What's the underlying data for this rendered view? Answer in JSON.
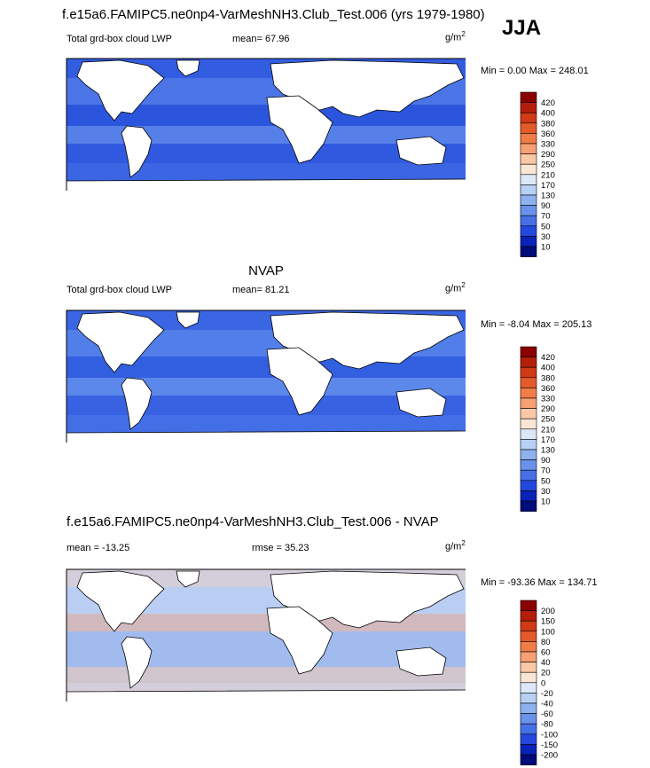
{
  "header": {
    "main_title": "f.e15a6.FAMIPC5.ne0np4-VarMeshNH3.Club_Test.006 (yrs 1979-1980)",
    "season": "JJA"
  },
  "chart_data": [
    {
      "type": "heatmap",
      "panel_title": "",
      "left_label": "Total grd-box cloud LWP",
      "stat_label": "mean=  67.96",
      "units": "g/m",
      "units_sup": "2",
      "minmax": "Min =   0.00 Max = 248.01",
      "min": 0.0,
      "max": 248.01,
      "mean": 67.96,
      "colorbar_labels": [
        "420",
        "400",
        "380",
        "360",
        "330",
        "290",
        "250",
        "210",
        "170",
        "130",
        "90",
        "70",
        "50",
        "30",
        "10"
      ],
      "colorbar_colors": [
        "#8b0000",
        "#b41e0a",
        "#d03a14",
        "#e45a28",
        "#f07c48",
        "#f6a074",
        "#fac8a6",
        "#fbe6d4",
        "#dce8f8",
        "#b8d0f4",
        "#8fb2ef",
        "#6a92eb",
        "#4670e6",
        "#2448dd",
        "#0a22b8",
        "#000c78"
      ],
      "ocean_color": "#3a64e2"
    },
    {
      "type": "heatmap",
      "panel_title": "NVAP",
      "left_label": "Total grd-box cloud LWP",
      "stat_label": "mean=  81.21",
      "units": "g/m",
      "units_sup": "2",
      "minmax": "Min =  -8.04 Max = 205.13",
      "min": -8.04,
      "max": 205.13,
      "mean": 81.21,
      "colorbar_labels": [
        "420",
        "400",
        "380",
        "360",
        "330",
        "290",
        "250",
        "210",
        "170",
        "130",
        "90",
        "70",
        "50",
        "30",
        "10"
      ],
      "colorbar_colors": [
        "#8b0000",
        "#b41e0a",
        "#d03a14",
        "#e45a28",
        "#f07c48",
        "#f6a074",
        "#fac8a6",
        "#fbe6d4",
        "#dce8f8",
        "#b8d0f4",
        "#8fb2ef",
        "#6a92eb",
        "#4670e6",
        "#2448dd",
        "#0a22b8",
        "#000c78"
      ],
      "ocean_color": "#4a78e8"
    },
    {
      "type": "heatmap",
      "panel_title": "f.e15a6.FAMIPC5.ne0np4-VarMeshNH3.Club_Test.006 - NVAP",
      "left_label": "mean = -13.25",
      "stat_label": "rmse =  35.23",
      "units": "g/m",
      "units_sup": "2",
      "minmax": "Min = -93.36 Max = 134.71",
      "min": -93.36,
      "max": 134.71,
      "mean": -13.25,
      "rmse": 35.23,
      "colorbar_labels": [
        "200",
        "150",
        "100",
        "80",
        "60",
        "40",
        "20",
        "0",
        "-20",
        "-40",
        "-60",
        "-80",
        "-100",
        "-150",
        "-200"
      ],
      "colorbar_colors": [
        "#8b0000",
        "#b41e0a",
        "#d03a14",
        "#e45a28",
        "#f07c48",
        "#f6a074",
        "#fac8a6",
        "#fbe6d4",
        "#dce8f8",
        "#b8d0f4",
        "#8fb2ef",
        "#6a92eb",
        "#4670e6",
        "#2448dd",
        "#0a22b8",
        "#000c78"
      ],
      "ocean_color": "#a8c0f0"
    }
  ]
}
